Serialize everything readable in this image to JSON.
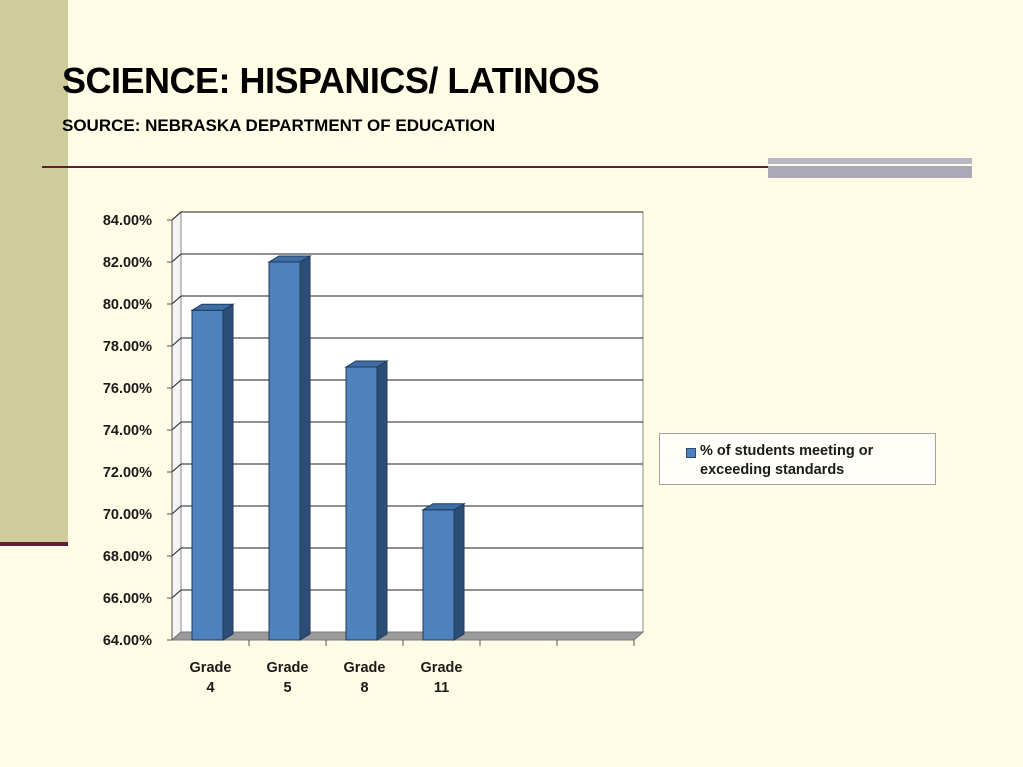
{
  "slide": {
    "title": "SCIENCE: HISPANICS/ LATINOS",
    "subtitle": "SOURCE: NEBRASKA DEPARTMENT OF EDUCATION"
  },
  "colors": {
    "bar": "#4f81bd",
    "bar_side": "#2c4d75",
    "bar_top": "#3f6ea6",
    "background": "#fffde6",
    "side_bar": "#cfcc9c",
    "rule": "#5c1f3a"
  },
  "chart_data": {
    "type": "bar",
    "categories": [
      [
        "Grade",
        "4"
      ],
      [
        "Grade",
        "5"
      ],
      [
        "Grade",
        "8"
      ],
      [
        "Grade",
        "11"
      ]
    ],
    "series": [
      {
        "name": "% of students meeting or exceeding standards",
        "values": [
          79.7,
          82.0,
          77.0,
          70.2
        ]
      }
    ],
    "ylim": [
      64,
      84
    ],
    "yticks": [
      "84.00%",
      "82.00%",
      "80.00%",
      "78.00%",
      "76.00%",
      "74.00%",
      "72.00%",
      "70.00%",
      "68.00%",
      "66.00%",
      "64.00%"
    ],
    "ytick_values": [
      84,
      82,
      80,
      78,
      76,
      74,
      72,
      70,
      68,
      66,
      64
    ],
    "grid": true,
    "three_d": true,
    "legend_position": "right"
  }
}
